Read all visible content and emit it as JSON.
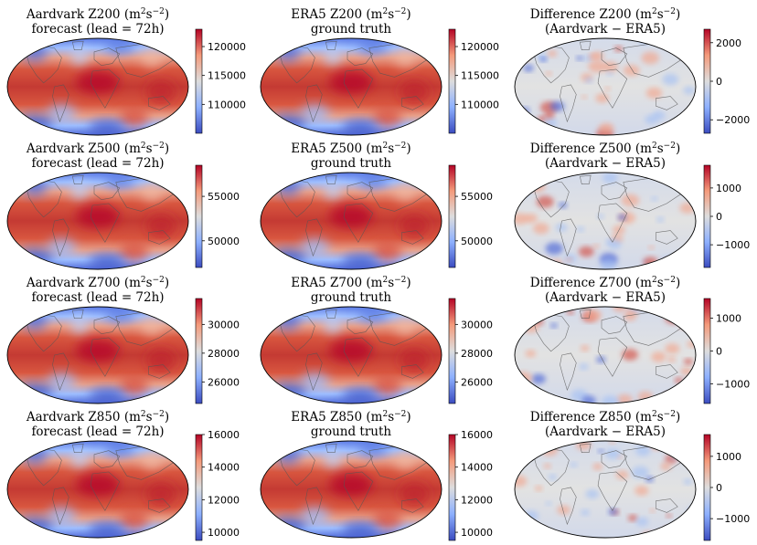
{
  "figure": {
    "columns": [
      {
        "line1_prefix": "Aardvark ",
        "line1_suffix": " (m",
        "line2": "forecast (lead = 72h)"
      },
      {
        "line1_prefix": "ERA5 ",
        "line1_suffix": " (m",
        "line2": "ground truth"
      },
      {
        "line1_prefix": "Difference ",
        "line1_suffix": " (m",
        "line2": "(Aardvark − ERA5)"
      }
    ],
    "units_power_1": "2",
    "units_mid": "s",
    "units_power_2": "−2",
    "units_close": ")",
    "colors": {
      "low": "#3b4cc0",
      "mid": "#dddddd",
      "high": "#b40426",
      "coast": "#555555",
      "outline": "#000000"
    }
  },
  "chart_data": [
    {
      "type": "heatmap",
      "variable": "Z200",
      "panel": "forecast",
      "title": "Aardvark Z200 (m²s⁻²) forecast (lead = 72h)",
      "clim": [
        105000,
        123000
      ],
      "colorbar_ticks": [
        110000,
        115000,
        120000
      ],
      "tick_labels": [
        "110000",
        "115000",
        "120000"
      ],
      "cmap": "coolwarm"
    },
    {
      "type": "heatmap",
      "variable": "Z200",
      "panel": "truth",
      "title": "ERA5 Z200 (m²s⁻²) ground truth",
      "clim": [
        105000,
        123000
      ],
      "colorbar_ticks": [
        110000,
        115000,
        120000
      ],
      "tick_labels": [
        "110000",
        "115000",
        "120000"
      ],
      "cmap": "coolwarm"
    },
    {
      "type": "heatmap",
      "variable": "Z200",
      "panel": "difference",
      "title": "Difference Z200 (m²s⁻²) (Aardvark − ERA5)",
      "clim": [
        -2700,
        2700
      ],
      "colorbar_ticks": [
        -2000,
        0,
        2000
      ],
      "tick_labels": [
        "−2000",
        "0",
        "2000"
      ],
      "cmap": "coolwarm"
    },
    {
      "type": "heatmap",
      "variable": "Z500",
      "panel": "forecast",
      "title": "Aardvark Z500 (m²s⁻²) forecast (lead = 72h)",
      "clim": [
        47000,
        58500
      ],
      "colorbar_ticks": [
        50000,
        55000
      ],
      "tick_labels": [
        "50000",
        "55000"
      ],
      "cmap": "coolwarm"
    },
    {
      "type": "heatmap",
      "variable": "Z500",
      "panel": "truth",
      "title": "ERA5 Z500 (m²s⁻²) ground truth",
      "clim": [
        47000,
        58500
      ],
      "colorbar_ticks": [
        50000,
        55000
      ],
      "tick_labels": [
        "50000",
        "55000"
      ],
      "cmap": "coolwarm"
    },
    {
      "type": "heatmap",
      "variable": "Z500",
      "panel": "difference",
      "title": "Difference Z500 (m²s⁻²) (Aardvark − ERA5)",
      "clim": [
        -1800,
        1800
      ],
      "colorbar_ticks": [
        -1000,
        0,
        1000
      ],
      "tick_labels": [
        "−1000",
        "0",
        "1000"
      ],
      "cmap": "coolwarm"
    },
    {
      "type": "heatmap",
      "variable": "Z700",
      "panel": "forecast",
      "title": "Aardvark Z700 (m²s⁻²) forecast (lead = 72h)",
      "clim": [
        24500,
        31800
      ],
      "colorbar_ticks": [
        26000,
        28000,
        30000
      ],
      "tick_labels": [
        "26000",
        "28000",
        "30000"
      ],
      "cmap": "coolwarm"
    },
    {
      "type": "heatmap",
      "variable": "Z700",
      "panel": "truth",
      "title": "ERA5 Z700 (m²s⁻²) ground truth",
      "clim": [
        24500,
        31800
      ],
      "colorbar_ticks": [
        26000,
        28000,
        30000
      ],
      "tick_labels": [
        "26000",
        "28000",
        "30000"
      ],
      "cmap": "coolwarm"
    },
    {
      "type": "heatmap",
      "variable": "Z700",
      "panel": "difference",
      "title": "Difference Z700 (m²s⁻²) (Aardvark − ERA5)",
      "clim": [
        -1600,
        1600
      ],
      "colorbar_ticks": [
        -1000,
        0,
        1000
      ],
      "tick_labels": [
        "−1000",
        "0",
        "1000"
      ],
      "cmap": "coolwarm"
    },
    {
      "type": "heatmap",
      "variable": "Z850",
      "panel": "forecast",
      "title": "Aardvark Z850 (m²s⁻²) forecast (lead = 72h)",
      "clim": [
        9500,
        16000
      ],
      "colorbar_ticks": [
        10000,
        12000,
        14000,
        16000
      ],
      "tick_labels": [
        "10000",
        "12000",
        "14000",
        "16000"
      ],
      "cmap": "coolwarm"
    },
    {
      "type": "heatmap",
      "variable": "Z850",
      "panel": "truth",
      "title": "ERA5 Z850 (m²s⁻²) ground truth",
      "clim": [
        9500,
        16000
      ],
      "colorbar_ticks": [
        10000,
        12000,
        14000,
        16000
      ],
      "tick_labels": [
        "10000",
        "12000",
        "14000",
        "16000"
      ],
      "cmap": "coolwarm"
    },
    {
      "type": "heatmap",
      "variable": "Z850",
      "panel": "difference",
      "title": "Difference Z850 (m²s⁻²) (Aardvark − ERA5)",
      "clim": [
        -1700,
        1700
      ],
      "colorbar_ticks": [
        -1000,
        0,
        1000
      ],
      "tick_labels": [
        "−1000",
        "0",
        "1000"
      ],
      "cmap": "coolwarm"
    }
  ]
}
